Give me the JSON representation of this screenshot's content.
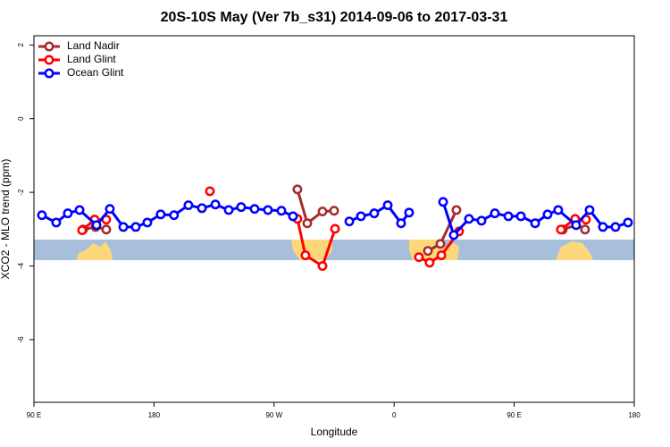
{
  "chart_data": {
    "type": "line",
    "title": "20S-10S May (Ver 7b_s31)   2014-09-06 to 2017-03-31",
    "xlabel": "Longitude",
    "ylabel": "XCO2 - MLO trend (ppm)",
    "xlim": [
      90,
      540
    ],
    "ylim": [
      -7.7,
      2.25
    ],
    "xticks": [
      {
        "value": 90,
        "label": "90 E"
      },
      180,
      {
        "value": 270,
        "label": "90 W"
      },
      {
        "value": 360,
        "label": "0"
      },
      {
        "value": 450,
        "label": "90 E"
      },
      {
        "value": 540,
        "label": "180"
      }
    ],
    "yticks": [
      2,
      0,
      -2,
      -4,
      -6
    ],
    "legend": "top-left",
    "series": [
      {
        "name": "Land Nadir",
        "color": "#a52a2a",
        "x": [
          126.8,
          136.2,
          144.2,
          null,
          287.5,
          294.9,
          306.3,
          315,
          null,
          385.3,
          394.7,
          406.7,
          null,
          486.4,
          496.4,
          503.1
        ],
        "values": [
          -3.01,
          -2.94,
          -3.01,
          null,
          -1.92,
          -2.84,
          -2.52,
          -2.5,
          null,
          -3.59,
          -3.4,
          -2.48,
          null,
          -3.01,
          -2.89,
          -3.01
        ]
      },
      {
        "name": "Land Glint",
        "color": "#ff0000",
        "x": [
          126.1,
          135.5,
          144.2,
          null,
          221.9,
          null,
          287.5,
          293.5,
          306.3,
          315.7,
          null,
          378.6,
          386.6,
          395.4,
          408.7,
          null,
          485,
          495.7,
          503.8
        ],
        "values": [
          -3.03,
          -2.74,
          -2.74,
          null,
          -1.97,
          null,
          -2.72,
          -3.71,
          -4.0,
          -2.99,
          null,
          -3.76,
          -3.91,
          -3.71,
          -3.06,
          null,
          -3.01,
          -2.72,
          -2.74
        ]
      },
      {
        "name": "Ocean Glint",
        "color": "#0000ff",
        "x": [
          96,
          106.7,
          115.4,
          124.2,
          136.9,
          146.9,
          157,
          166.3,
          175,
          185,
          195,
          205.8,
          215.9,
          226,
          236,
          245.3,
          255.4,
          265.4,
          275.5,
          284.2,
          null,
          326.4,
          335.1,
          345.1,
          355.2,
          365.2,
          371.2,
          null,
          396.7,
          404.7,
          416.1,
          425.5,
          435.5,
          445.6,
          455,
          465.7,
          475,
          483,
          496.4,
          506.5,
          516.5,
          525.9,
          535.3
        ],
        "values": [
          -2.62,
          -2.82,
          -2.57,
          -2.48,
          -2.89,
          -2.45,
          -2.94,
          -2.94,
          -2.82,
          -2.6,
          -2.62,
          -2.35,
          -2.43,
          -2.33,
          -2.48,
          -2.4,
          -2.45,
          -2.48,
          -2.5,
          -2.65,
          null,
          -2.79,
          -2.65,
          -2.57,
          -2.35,
          -2.84,
          -2.55,
          null,
          -2.26,
          -3.16,
          -2.72,
          -2.77,
          -2.57,
          -2.65,
          -2.65,
          -2.84,
          -2.6,
          -2.48,
          -2.89,
          -2.48,
          -2.94,
          -2.94,
          -2.82
        ]
      }
    ]
  }
}
